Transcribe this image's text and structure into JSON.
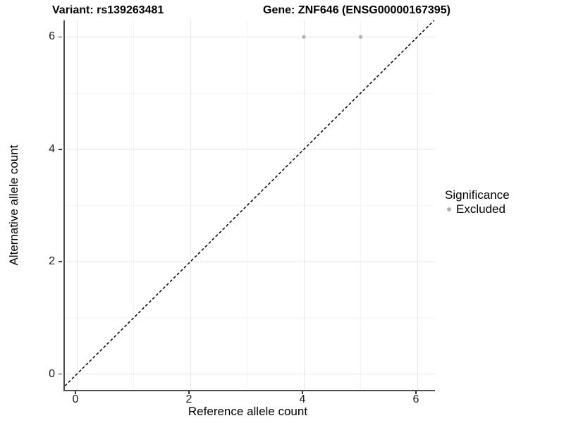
{
  "header": {
    "variant_title": "Variant: rs139263481",
    "gene_title": "Gene: ZNF646 (ENSG00000167395)"
  },
  "chart_data": {
    "type": "scatter",
    "title": "Variant: rs139263481 / Gene: ZNF646 (ENSG00000167395)",
    "xlabel": "Reference allele count",
    "ylabel": "Alternative allele count",
    "xlim": [
      -0.24,
      6.31
    ],
    "ylim": [
      -0.28,
      6.29
    ],
    "x_ticks": [
      0,
      2,
      4,
      6
    ],
    "y_ticks": [
      0,
      2,
      4,
      6
    ],
    "x_minor_ticks": [
      1,
      3,
      5
    ],
    "y_minor_ticks": [
      1,
      3,
      5
    ],
    "grid": "major+minor",
    "series": [
      {
        "name": "Excluded",
        "marker": "circle",
        "color": "#b3b3b3",
        "points": [
          {
            "x": 4,
            "y": 6
          },
          {
            "x": 5,
            "y": 6
          }
        ]
      }
    ],
    "reference_line": {
      "kind": "identity y=x",
      "style": "dashed",
      "color": "#000000"
    },
    "legend": {
      "title": "Significance",
      "position": "right",
      "entries": [
        {
          "label": "Excluded",
          "color": "#b3b3b3",
          "marker": "circle"
        }
      ]
    }
  },
  "colors": {
    "background": "#ffffff",
    "axis_line": "#4d4d4d",
    "tick_mark": "#333333",
    "grid_major": "#e6e6e6",
    "grid_minor": "#f3f3f3",
    "text": "#000000",
    "point": "#b3b3b3"
  }
}
